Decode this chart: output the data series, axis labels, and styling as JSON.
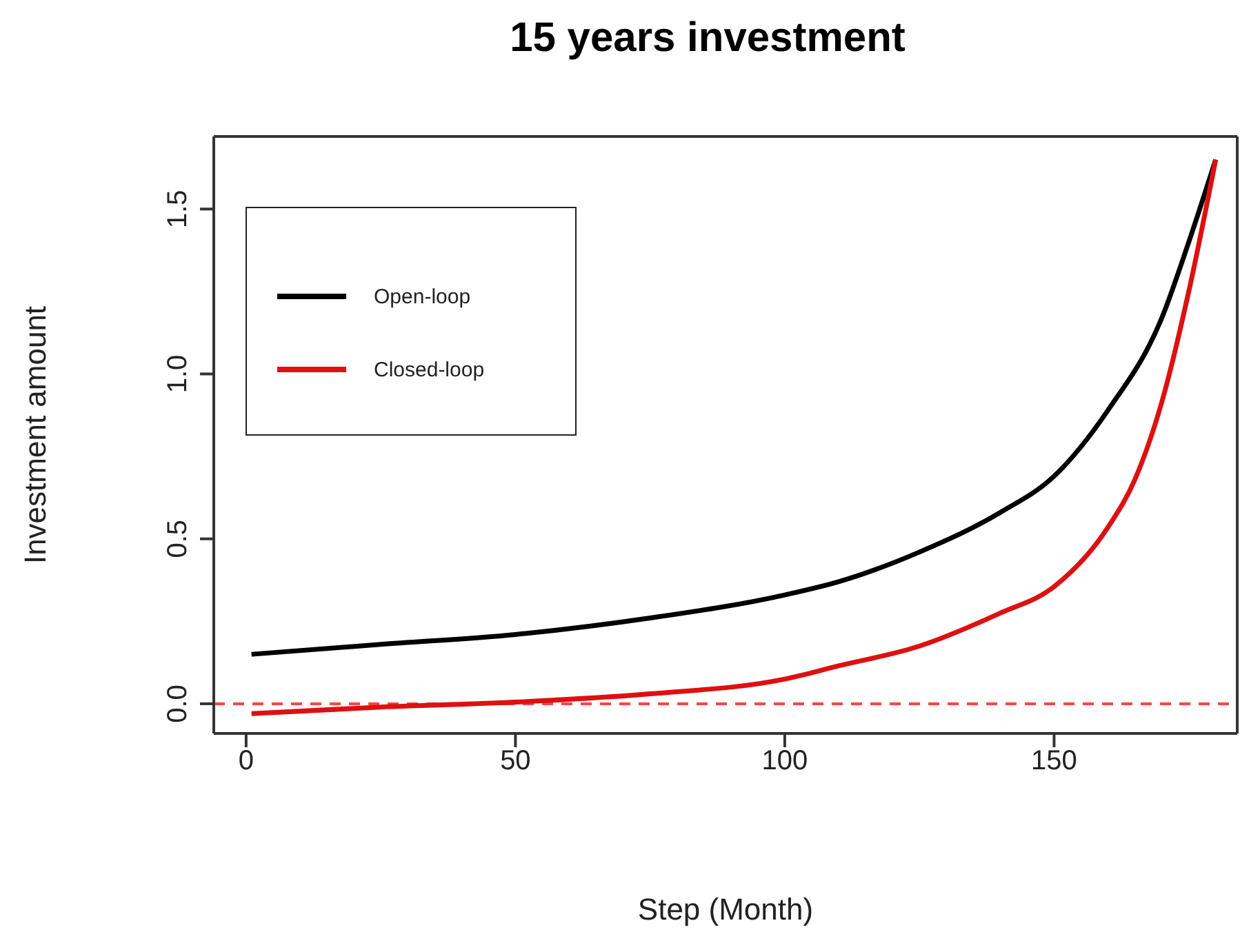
{
  "chart_data": {
    "type": "line",
    "title": "15 years investment",
    "xlabel": "Step (Month)",
    "ylabel": "Investment amount",
    "xlim": [
      -6,
      184
    ],
    "xticks": [
      0,
      50,
      100,
      150
    ],
    "ylim": [
      -0.09,
      1.72
    ],
    "yticks": [
      {
        "value": 0,
        "label": "0.0"
      },
      {
        "value": 0.5,
        "label": "0.5"
      },
      {
        "value": 1,
        "label": "1.0"
      },
      {
        "value": 1.5,
        "label": "1.5"
      }
    ],
    "grid": false,
    "legend": "top left",
    "line_style": "solid",
    "marker": "none",
    "series": [
      {
        "name": "Open-loop",
        "color": "#000000",
        "x": [
          1,
          25,
          50,
          75,
          100,
          110,
          125,
          140,
          150,
          160,
          170,
          175,
          180
        ],
        "values": [
          0.15,
          0.18,
          0.21,
          0.26,
          0.33,
          0.37,
          0.46,
          0.58,
          0.69,
          0.89,
          1.17,
          1.4,
          1.65
        ]
      },
      {
        "name": "Closed-loop",
        "color": "#dd1111",
        "x": [
          1,
          25,
          50,
          75,
          100,
          110,
          125,
          140,
          150,
          160,
          165,
          170,
          175,
          180
        ],
        "values": [
          -0.03,
          -0.01,
          0.005,
          0.03,
          0.075,
          0.115,
          0.175,
          0.275,
          0.355,
          0.535,
          0.68,
          0.915,
          1.25,
          1.65
        ]
      }
    ],
    "ref_lines": [
      {
        "axis": "y",
        "value": 0,
        "color": "#ff4444",
        "line_style": "dashed"
      }
    ]
  }
}
